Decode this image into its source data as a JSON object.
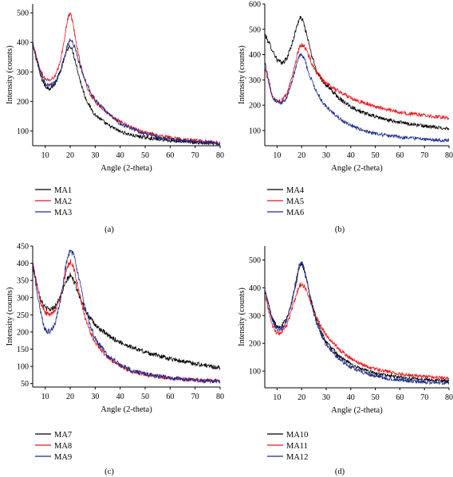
{
  "chart_data": [
    {
      "panel_label": "(a)",
      "type": "line",
      "xlabel": "Angle (2-theta)",
      "ylabel": "Intensity (counts)",
      "xlim": [
        5,
        80
      ],
      "ylim": [
        50,
        530
      ],
      "xticks": [
        10,
        20,
        30,
        40,
        50,
        60,
        70,
        80
      ],
      "yticks": [
        100,
        200,
        300,
        400,
        500
      ],
      "grid": false,
      "legend_position": "bottom-left",
      "x": [
        5,
        8,
        10,
        12,
        14,
        16,
        18,
        19,
        20,
        21,
        22,
        24,
        26,
        28,
        30,
        35,
        40,
        45,
        50,
        55,
        60,
        65,
        70,
        75,
        80
      ],
      "series": [
        {
          "name": "MA1",
          "color": "#000000",
          "noise": 7,
          "values": [
            395,
            290,
            250,
            245,
            260,
            300,
            355,
            380,
            390,
            370,
            340,
            270,
            215,
            180,
            155,
            120,
            98,
            85,
            78,
            72,
            68,
            64,
            61,
            58,
            55
          ]
        },
        {
          "name": "MA2",
          "color": "#e8151b",
          "noise": 7,
          "values": [
            395,
            305,
            275,
            272,
            285,
            330,
            430,
            480,
            500,
            470,
            420,
            330,
            265,
            225,
            200,
            160,
            130,
            110,
            95,
            85,
            78,
            72,
            67,
            63,
            60
          ]
        },
        {
          "name": "MA3",
          "color": "#1c2a8c",
          "noise": 7,
          "values": [
            395,
            300,
            260,
            255,
            265,
            300,
            360,
            395,
            410,
            400,
            380,
            320,
            270,
            235,
            205,
            160,
            125,
            105,
            90,
            80,
            73,
            68,
            64,
            61,
            58
          ]
        }
      ]
    },
    {
      "panel_label": "(b)",
      "type": "line",
      "xlabel": "Angle (2-theta)",
      "ylabel": "Intensity (counts)",
      "xlim": [
        5,
        80
      ],
      "ylim": [
        40,
        600
      ],
      "xticks": [
        10,
        20,
        30,
        40,
        50,
        60,
        70,
        80
      ],
      "yticks": [
        100,
        200,
        300,
        400,
        500,
        600
      ],
      "grid": false,
      "legend_position": "bottom-left",
      "x": [
        5,
        8,
        10,
        12,
        14,
        16,
        18,
        19,
        20,
        21,
        22,
        24,
        26,
        28,
        30,
        35,
        40,
        45,
        50,
        55,
        60,
        65,
        70,
        75,
        80
      ],
      "series": [
        {
          "name": "MA4",
          "color": "#000000",
          "noise": 8,
          "values": [
            480,
            420,
            380,
            365,
            385,
            440,
            510,
            540,
            545,
            520,
            480,
            400,
            340,
            305,
            280,
            230,
            195,
            170,
            155,
            142,
            132,
            125,
            118,
            112,
            108
          ]
        },
        {
          "name": "MA5",
          "color": "#e8151b",
          "noise": 8,
          "values": [
            350,
            235,
            215,
            220,
            245,
            310,
            390,
            425,
            440,
            435,
            415,
            370,
            330,
            305,
            285,
            255,
            230,
            210,
            195,
            182,
            172,
            165,
            160,
            155,
            150
          ]
        },
        {
          "name": "MA6",
          "color": "#1c2a8c",
          "noise": 8,
          "values": [
            370,
            235,
            210,
            210,
            230,
            290,
            360,
            395,
            400,
            385,
            355,
            300,
            255,
            220,
            195,
            150,
            120,
            100,
            88,
            80,
            74,
            70,
            66,
            63,
            60
          ]
        }
      ]
    },
    {
      "panel_label": "(c)",
      "type": "line",
      "xlabel": "Angle (2-theta)",
      "ylabel": "Intensity (counts)",
      "xlim": [
        5,
        80
      ],
      "ylim": [
        40,
        450
      ],
      "xticks": [
        10,
        20,
        30,
        40,
        50,
        60,
        70,
        80
      ],
      "yticks": [
        50,
        100,
        150,
        200,
        250,
        300,
        350,
        400,
        450
      ],
      "grid": false,
      "legend_position": "bottom-left",
      "x": [
        5,
        8,
        10,
        12,
        14,
        16,
        18,
        19,
        20,
        21,
        22,
        24,
        26,
        28,
        30,
        35,
        40,
        45,
        50,
        55,
        60,
        65,
        70,
        75,
        80
      ],
      "series": [
        {
          "name": "MA7",
          "color": "#000000",
          "noise": 7,
          "values": [
            390,
            300,
            270,
            265,
            275,
            300,
            340,
            355,
            365,
            355,
            340,
            300,
            265,
            240,
            220,
            190,
            170,
            155,
            142,
            132,
            123,
            115,
            108,
            102,
            95
          ]
        },
        {
          "name": "MA8",
          "color": "#e8151b",
          "noise": 7,
          "values": [
            400,
            290,
            255,
            250,
            265,
            300,
            360,
            390,
            405,
            395,
            370,
            300,
            240,
            200,
            170,
            125,
            100,
            85,
            76,
            70,
            66,
            63,
            60,
            58,
            57
          ]
        },
        {
          "name": "MA9",
          "color": "#1c2a8c",
          "noise": 8,
          "values": [
            400,
            260,
            205,
            200,
            225,
            290,
            380,
            420,
            435,
            430,
            410,
            340,
            270,
            220,
            180,
            130,
            105,
            88,
            78,
            72,
            67,
            63,
            60,
            58,
            57
          ]
        }
      ]
    },
    {
      "panel_label": "(d)",
      "type": "line",
      "xlabel": "Angle (2-theta)",
      "ylabel": "Intensity (counts)",
      "xlim": [
        5,
        80
      ],
      "ylim": [
        40,
        550
      ],
      "xticks": [
        10,
        20,
        30,
        40,
        50,
        60,
        70,
        80
      ],
      "yticks": [
        100,
        200,
        300,
        400,
        500
      ],
      "grid": false,
      "legend_position": "bottom-left",
      "x": [
        5,
        8,
        10,
        12,
        14,
        16,
        18,
        19,
        20,
        21,
        22,
        24,
        26,
        28,
        30,
        35,
        40,
        45,
        50,
        55,
        60,
        65,
        70,
        75,
        80
      ],
      "series": [
        {
          "name": "MA10",
          "color": "#000000",
          "noise": 7,
          "values": [
            390,
            290,
            260,
            265,
            290,
            350,
            430,
            470,
            485,
            465,
            430,
            350,
            285,
            240,
            205,
            155,
            125,
            105,
            92,
            84,
            78,
            73,
            70,
            67,
            65
          ]
        },
        {
          "name": "MA11",
          "color": "#e8151b",
          "noise": 7,
          "values": [
            380,
            265,
            235,
            240,
            265,
            320,
            380,
            405,
            415,
            405,
            390,
            340,
            295,
            260,
            230,
            180,
            145,
            122,
            108,
            98,
            90,
            85,
            80,
            77,
            75
          ]
        },
        {
          "name": "MA12",
          "color": "#1c2a8c",
          "noise": 8,
          "values": [
            395,
            285,
            250,
            255,
            285,
            350,
            440,
            480,
            490,
            470,
            430,
            345,
            275,
            230,
            195,
            145,
            115,
            95,
            82,
            74,
            68,
            64,
            61,
            59,
            57
          ]
        }
      ]
    }
  ]
}
